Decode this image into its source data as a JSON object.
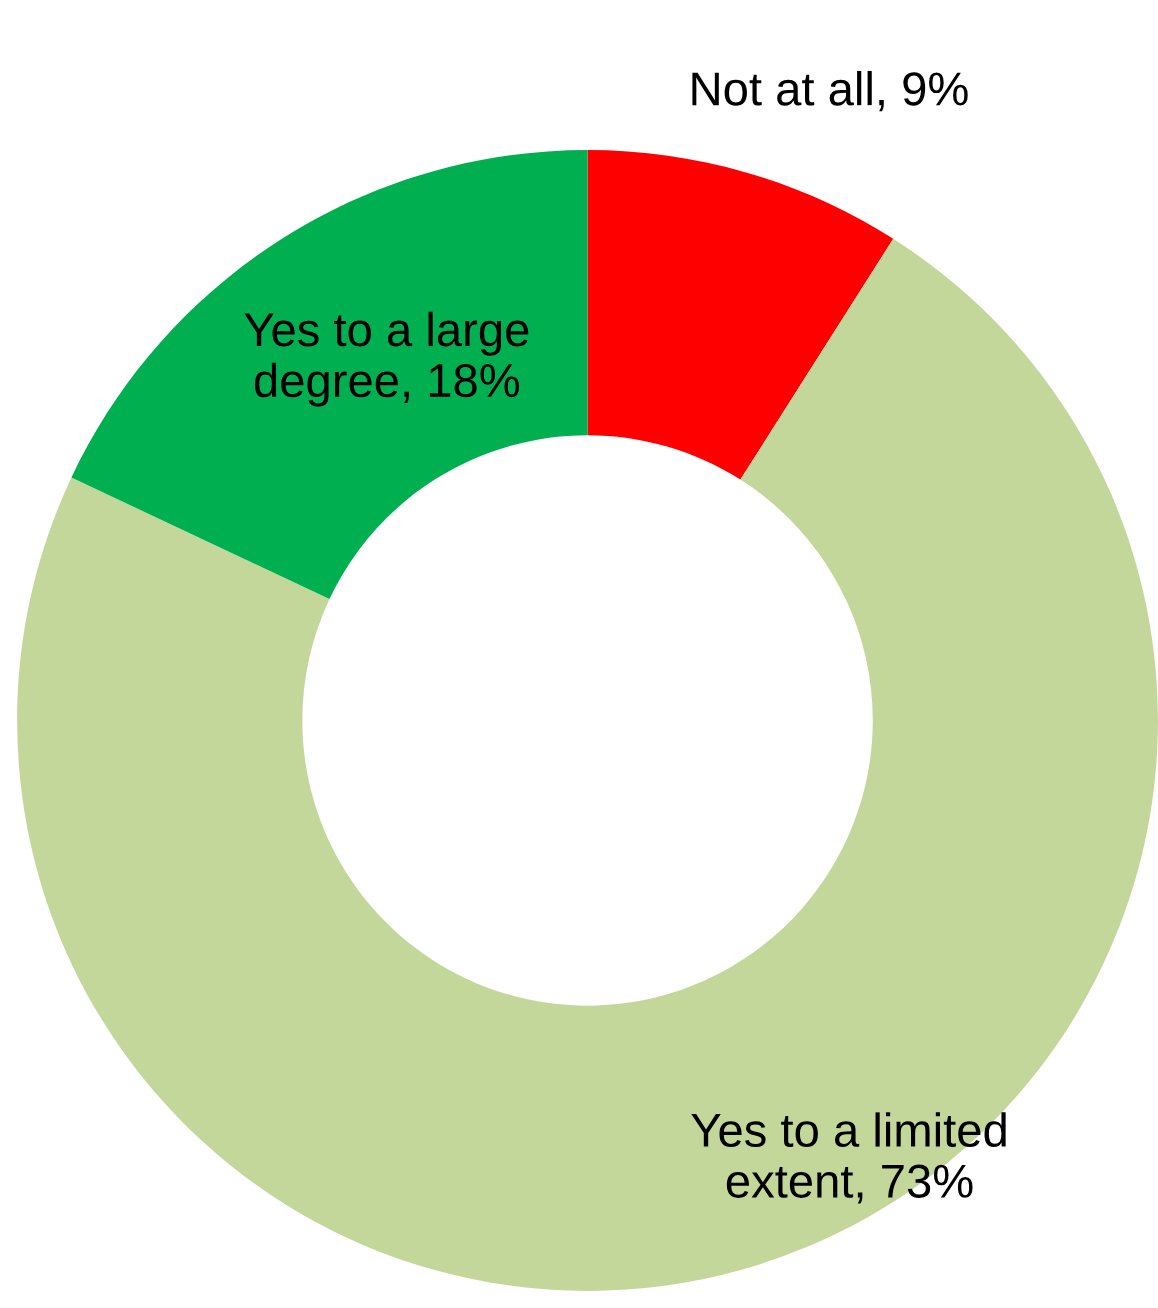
{
  "chart_data": {
    "type": "donut",
    "categories": [
      "Not at all",
      "Yes to a limited extent",
      "Yes to a large degree"
    ],
    "values": [
      9,
      73,
      18
    ],
    "colors": [
      "#ff0000",
      "#c4d79b",
      "#00b050"
    ],
    "value_labels": [
      "9%",
      "73%",
      "18%"
    ],
    "legend": false
  }
}
